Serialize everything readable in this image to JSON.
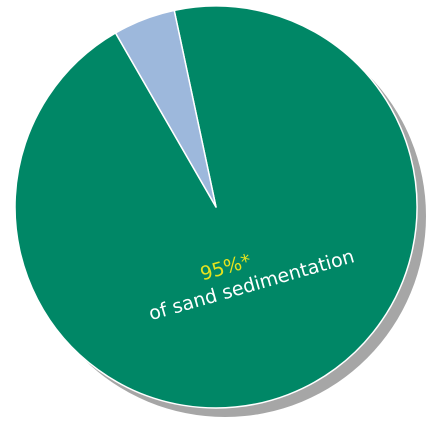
{
  "chart_data": {
    "type": "pie",
    "slices": [
      {
        "value": 95,
        "color": "#008766"
      },
      {
        "value": 5,
        "color": "#9db8dc"
      }
    ],
    "annotation": {
      "percent_text": "95%*",
      "percent_color": "#e5e31e",
      "caption_text": "of sand sedimentation",
      "caption_color": "#ffffff"
    },
    "shadow_color": "#a6a6a6",
    "edge_color": "#ffffff"
  }
}
